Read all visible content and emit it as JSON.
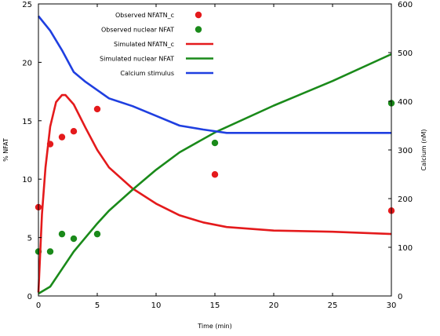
{
  "chart_data": {
    "type": "line",
    "xlabel": "Time (min)",
    "ylabel": "% NFAT",
    "y2label": "Calcium (nM)",
    "xlim": [
      0,
      30
    ],
    "ylim": [
      0,
      25
    ],
    "y2lim": [
      0,
      600
    ],
    "xticks": [
      0,
      5,
      10,
      15,
      20,
      25,
      30
    ],
    "yticks": [
      0,
      5,
      10,
      15,
      20,
      25
    ],
    "y2ticks": [
      0,
      100,
      200,
      300,
      400,
      500,
      600
    ],
    "grid": false,
    "legend_position": "top-center",
    "series": [
      {
        "name": "Observed NFATN_c",
        "kind": "scatter",
        "axis": "left",
        "color": "#e41a1c",
        "x": [
          0,
          1,
          2,
          3,
          5,
          15,
          30
        ],
        "y": [
          7.6,
          13.0,
          13.6,
          14.1,
          16.0,
          10.4,
          7.3
        ]
      },
      {
        "name": "Observed nuclear NFAT",
        "kind": "scatter",
        "axis": "left",
        "color": "#1a8a1a",
        "x": [
          0,
          1,
          2,
          3,
          5,
          15,
          30
        ],
        "y": [
          3.8,
          3.8,
          5.3,
          4.9,
          5.3,
          13.1,
          16.5
        ]
      },
      {
        "name": "Simulated NFATN_c",
        "kind": "line",
        "axis": "left",
        "color": "#e41a1c",
        "x": [
          0,
          0.3,
          0.6,
          1,
          1.5,
          2,
          2.3,
          3,
          4,
          5,
          6,
          8,
          10,
          12,
          14,
          16,
          20,
          25,
          30
        ],
        "y": [
          0.3,
          7.0,
          11.0,
          14.5,
          16.6,
          17.2,
          17.2,
          16.4,
          14.4,
          12.5,
          11.0,
          9.2,
          7.9,
          6.9,
          6.3,
          5.9,
          5.6,
          5.5,
          5.3
        ]
      },
      {
        "name": "Simulated nuclear NFAT",
        "kind": "line",
        "axis": "left",
        "color": "#1a8a1a",
        "x": [
          0,
          1,
          2,
          3,
          4,
          5,
          6,
          8,
          10,
          12,
          15,
          20,
          25,
          30
        ],
        "y": [
          0.2,
          0.8,
          2.3,
          3.8,
          5.0,
          6.2,
          7.3,
          9.1,
          10.8,
          12.3,
          14.0,
          16.3,
          18.4,
          20.7
        ]
      },
      {
        "name": "Calcium stimulus",
        "kind": "line",
        "axis": "right",
        "color": "#1f3fe0",
        "x": [
          0,
          1,
          2,
          3,
          4,
          6,
          8,
          10,
          12,
          14,
          16,
          18,
          20,
          25,
          30
        ],
        "y": [
          575,
          545,
          505,
          460,
          440,
          406,
          390,
          370,
          350,
          342,
          335,
          335,
          335,
          335,
          335
        ]
      }
    ]
  }
}
